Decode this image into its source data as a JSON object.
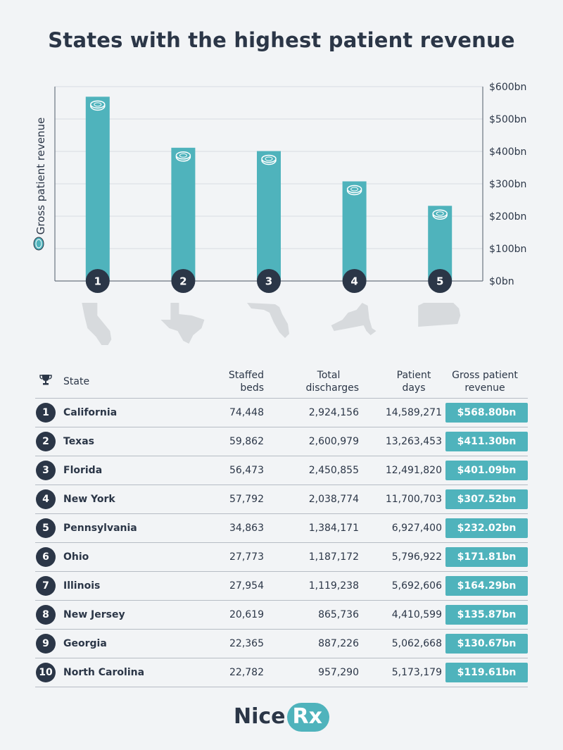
{
  "title": "States with the highest patient revenue",
  "colors": {
    "bar": "#4fb3bc",
    "dark": "#2b3647",
    "grid": "#d8dde2",
    "map": "#d7dadd"
  },
  "chart_data": {
    "type": "bar",
    "categories": [
      "1",
      "2",
      "3",
      "4",
      "5"
    ],
    "values": [
      568.8,
      411.3,
      401.09,
      307.52,
      232.02
    ],
    "ylabel": "Gross patient revenue",
    "ylim": [
      0,
      600
    ],
    "yticks": [
      {
        "value": 0,
        "label": "$0bn"
      },
      {
        "value": 100,
        "label": "$100bn"
      },
      {
        "value": 200,
        "label": "$200bn"
      },
      {
        "value": 300,
        "label": "$300bn"
      },
      {
        "value": 400,
        "label": "$400bn"
      },
      {
        "value": 500,
        "label": "$500bn"
      },
      {
        "value": 600,
        "label": "$600bn"
      }
    ],
    "axis_side": "right",
    "grid": true,
    "bar_icon": "coin-icon",
    "state_icons": [
      "california-map-icon",
      "texas-map-icon",
      "florida-map-icon",
      "new-york-map-icon",
      "pennsylvania-map-icon"
    ]
  },
  "table": {
    "header_icon": "trophy-icon",
    "columns": {
      "state": "State",
      "beds": [
        "Staffed",
        "beds"
      ],
      "discharges": [
        "Total",
        "discharges"
      ],
      "days": [
        "Patient",
        "days"
      ],
      "revenue": [
        "Gross patient",
        "revenue"
      ]
    },
    "rows": [
      {
        "rank": "1",
        "state": "California",
        "beds": "74,448",
        "discharges": "2,924,156",
        "days": "14,589,271",
        "revenue": "$568.80bn"
      },
      {
        "rank": "2",
        "state": "Texas",
        "beds": "59,862",
        "discharges": "2,600,979",
        "days": "13,263,453",
        "revenue": "$411.30bn"
      },
      {
        "rank": "3",
        "state": "Florida",
        "beds": "56,473",
        "discharges": "2,450,855",
        "days": "12,491,820",
        "revenue": "$401.09bn"
      },
      {
        "rank": "4",
        "state": "New York",
        "beds": "57,792",
        "discharges": "2,038,774",
        "days": "11,700,703",
        "revenue": "$307.52bn"
      },
      {
        "rank": "5",
        "state": "Pennsylvania",
        "beds": "34,863",
        "discharges": "1,384,171",
        "days": "6,927,400",
        "revenue": "$232.02bn"
      },
      {
        "rank": "6",
        "state": "Ohio",
        "beds": "27,773",
        "discharges": "1,187,172",
        "days": "5,796,922",
        "revenue": "$171.81bn"
      },
      {
        "rank": "7",
        "state": "Illinois",
        "beds": "27,954",
        "discharges": "1,119,238",
        "days": "5,692,606",
        "revenue": "$164.29bn"
      },
      {
        "rank": "8",
        "state": "New Jersey",
        "beds": "20,619",
        "discharges": "865,736",
        "days": "4,410,599",
        "revenue": "$135.87bn"
      },
      {
        "rank": "9",
        "state": "Georgia",
        "beds": "22,365",
        "discharges": "887,226",
        "days": "5,062,668",
        "revenue": "$130.67bn"
      },
      {
        "rank": "10",
        "state": "North Carolina",
        "beds": "22,782",
        "discharges": "957,290",
        "days": "5,173,179",
        "revenue": "$119.61bn"
      }
    ]
  },
  "logo": {
    "part1": "Nice",
    "part2": "Rx"
  }
}
